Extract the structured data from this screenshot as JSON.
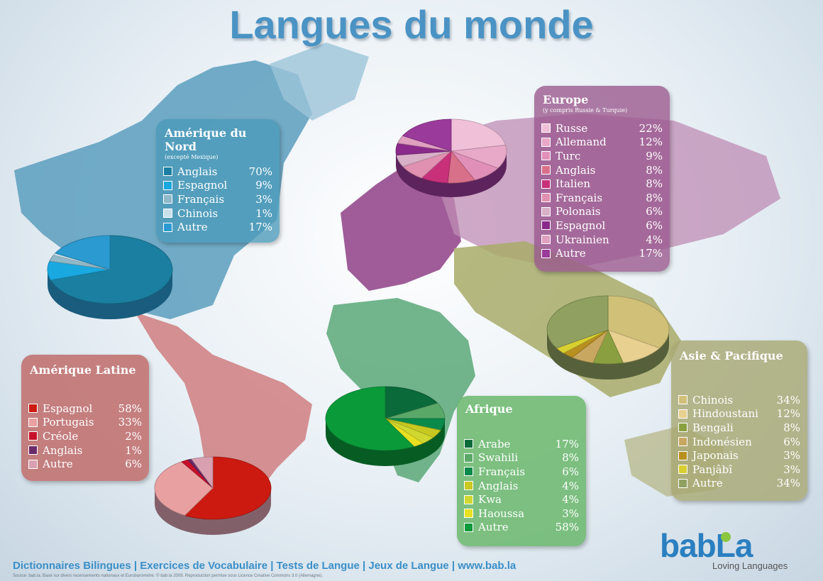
{
  "title": "Langues du monde",
  "footer": "Dictionnaires Bilingues | Exercices de Vocabulaire | Tests de Langue | Jeux de Langue | www.bab.la",
  "source": "Source: bab.la.   Basé sur divers recensements nationaux et Eurobaromètre.          © bab.la 2009. Reproduction permise sous Licence Creative Commons 3.0 (Allemagne).",
  "logo": {
    "brand_a": "bab",
    "brand_b": "La",
    "tagline": "Loving Languages"
  },
  "chart_data": [
    {
      "type": "pie",
      "title": "Amérique du Nord",
      "subtitle": "(excepté Mexique)",
      "panel_color": "#4a9ab8",
      "categories": [
        "Anglais",
        "Espagnol",
        "Français",
        "Chinois",
        "Autre"
      ],
      "values": [
        70,
        9,
        3,
        1,
        17
      ],
      "labels": [
        "70%",
        "9%",
        "3%",
        "1%",
        "17%"
      ],
      "colors": [
        "#1a7fa0",
        "#1aa8e0",
        "#8fb8c8",
        "#c8e0ea",
        "#2a9ad0"
      ]
    },
    {
      "type": "pie",
      "title": "Europe",
      "subtitle": "(y compris Russie & Turquie)",
      "panel_color": "#9a5a8e",
      "categories": [
        "Russe",
        "Allemand",
        "Turc",
        "Anglais",
        "Italien",
        "Français",
        "Polonais",
        "Espagnol",
        "Ukrainien",
        "Autre"
      ],
      "values": [
        22,
        12,
        9,
        8,
        8,
        8,
        6,
        6,
        4,
        17
      ],
      "labels": [
        "22%",
        "12%",
        "9%",
        "8%",
        "8%",
        "8%",
        "6%",
        "6%",
        "4%",
        "17%"
      ],
      "colors": [
        "#f0c0d8",
        "#e8a8c8",
        "#e090b8",
        "#d8708a",
        "#c8307a",
        "#e090b0",
        "#d8b0c8",
        "#8a2a8a",
        "#e0a0c0",
        "#9a3a9a"
      ]
    },
    {
      "type": "pie",
      "title": "Amérique Latine",
      "subtitle": "",
      "panel_color": "#c0706e",
      "categories": [
        "Espagnol",
        "Portugais",
        "Créole",
        "Anglais",
        "Autre"
      ],
      "values": [
        58,
        33,
        2,
        1,
        6
      ],
      "labels": [
        "58%",
        "33%",
        "2%",
        "1%",
        "6%"
      ],
      "colors": [
        "#cc1a10",
        "#e8a0a0",
        "#c8102a",
        "#6a2a6a",
        "#d8a0b0"
      ]
    },
    {
      "type": "pie",
      "title": "Afrique",
      "subtitle": "",
      "panel_color": "#6db870",
      "categories": [
        "Arabe",
        "Swahili",
        "Français",
        "Anglais",
        "Kwa",
        "Haoussa",
        "Autre"
      ],
      "values": [
        17,
        8,
        6,
        4,
        4,
        3,
        58
      ],
      "labels": [
        "17%",
        "8%",
        "6%",
        "4%",
        "4%",
        "3%",
        "58%"
      ],
      "colors": [
        "#0a6a3a",
        "#5aa868",
        "#0a8a4a",
        "#c8c820",
        "#d0d830",
        "#e8e020",
        "#0a9a3a"
      ]
    },
    {
      "type": "pie",
      "title": "Asie & Pacifique",
      "subtitle": "",
      "panel_color": "#a8a874",
      "categories": [
        "Chinois",
        "Hindoustani",
        "Bengali",
        "Indonésien",
        "Japonais",
        "Panjâbî",
        "Autre"
      ],
      "values": [
        34,
        12,
        8,
        6,
        3,
        3,
        34
      ],
      "labels": [
        "34%",
        "12%",
        "8%",
        "6%",
        "3%",
        "3%",
        "34%"
      ],
      "colors": [
        "#d0c078",
        "#e8d090",
        "#8aa040",
        "#c8a860",
        "#b89020",
        "#d8d030",
        "#90a060"
      ]
    }
  ]
}
